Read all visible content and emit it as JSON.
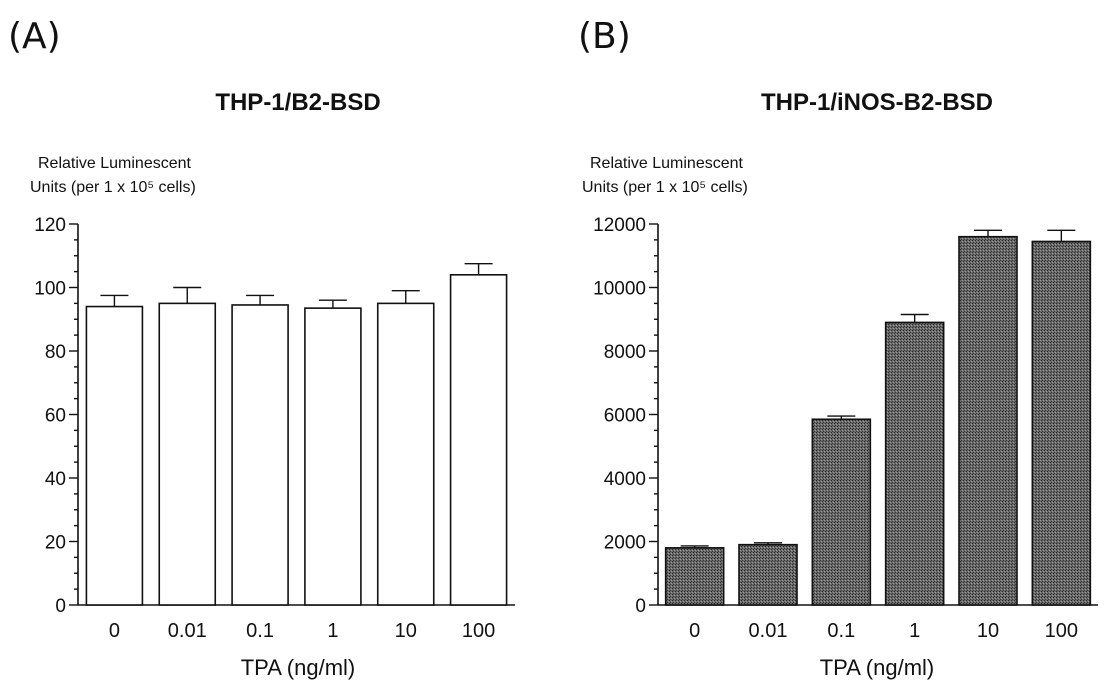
{
  "chart_data": [
    {
      "panel": "(A)",
      "type": "bar",
      "title": "THP-1/B2-BSD",
      "ylabel_lines": [
        "Relative Luminescent",
        "Units (per 1 x 10⁵ cells)"
      ],
      "xlabel": "TPA (ng/ml)",
      "categories": [
        "0",
        "0.01",
        "0.1",
        "1",
        "10",
        "100"
      ],
      "values": [
        94,
        95,
        94.5,
        93.5,
        95,
        104
      ],
      "errors": [
        3.5,
        5,
        3,
        2.5,
        4,
        3.5
      ],
      "ylim": [
        0,
        120
      ],
      "yticks": [
        "0",
        "20",
        "40",
        "60",
        "80",
        "100",
        "120"
      ],
      "bar_fill": "#ffffff"
    },
    {
      "panel": "(B)",
      "type": "bar",
      "title": "THP-1/iNOS-B2-BSD",
      "ylabel_lines": [
        "Relative Luminescent",
        "Units (per 1 x 10⁵ cells)"
      ],
      "xlabel": "TPA (ng/ml)",
      "categories": [
        "0",
        "0.01",
        "0.1",
        "1",
        "10",
        "100"
      ],
      "values": [
        1800,
        1900,
        5850,
        8900,
        11600,
        11450
      ],
      "errors": [
        60,
        60,
        100,
        250,
        200,
        350
      ],
      "ylim": [
        0,
        12000
      ],
      "yticks": [
        "0",
        "2000",
        "4000",
        "6000",
        "8000",
        "10000",
        "12000"
      ],
      "bar_fill": "#5a5a5a"
    }
  ]
}
